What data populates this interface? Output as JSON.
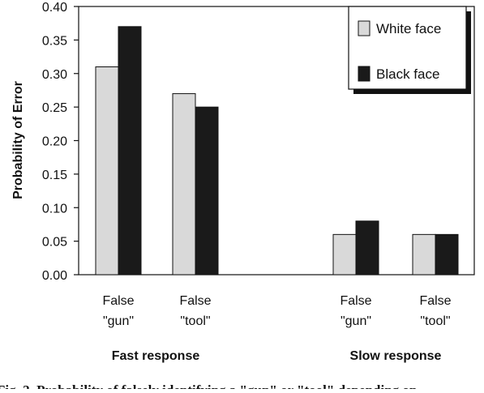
{
  "chart_data": {
    "type": "bar",
    "ylabel": "Probability of Error",
    "ylim": [
      0,
      0.4
    ],
    "yticks": [
      "0.00",
      "0.05",
      "0.10",
      "0.15",
      "0.20",
      "0.25",
      "0.30",
      "0.35",
      "0.40"
    ],
    "categories": [
      {
        "line1": "False",
        "line2": "\"gun\"",
        "group": "Fast response"
      },
      {
        "line1": "False",
        "line2": "\"tool\"",
        "group": "Fast response"
      },
      {
        "line1": "False",
        "line2": "\"gun\"",
        "group": "Slow response"
      },
      {
        "line1": "False",
        "line2": "\"tool\"",
        "group": "Slow response"
      }
    ],
    "groups": [
      "Fast response",
      "Slow response"
    ],
    "series": [
      {
        "name": "White face",
        "color": "#d9d9d9",
        "values": [
          0.31,
          0.27,
          0.06,
          0.06
        ]
      },
      {
        "name": "Black face",
        "color": "#1a1a1a",
        "values": [
          0.37,
          0.25,
          0.08,
          0.06
        ]
      }
    ],
    "legend_position": "top-right",
    "grid": false
  },
  "caption": {
    "text": "Fig. 2. Probability of falsely identifying a \"gun\" or \"tool\" depending on"
  }
}
